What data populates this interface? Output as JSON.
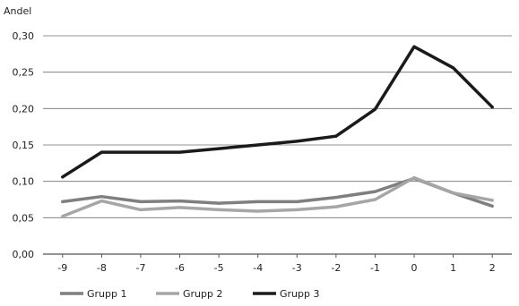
{
  "chart_data": {
    "type": "line",
    "ylabel": "Andel",
    "xlabel": "",
    "categories": [
      "-9",
      "-8",
      "-7",
      "-6",
      "-5",
      "-4",
      "-3",
      "-2",
      "-1",
      "0",
      "1",
      "2"
    ],
    "ylim": [
      0,
      0.3
    ],
    "yticks": [
      "0,00",
      "0,05",
      "0,10",
      "0,15",
      "0,20",
      "0,25",
      "0,30"
    ],
    "grid": "horizontal",
    "legend_position": "bottom",
    "series": [
      {
        "name": "Grupp 1",
        "color": "#7f7f7f",
        "values": [
          0.072,
          0.079,
          0.072,
          0.073,
          0.07,
          0.072,
          0.072,
          0.078,
          0.086,
          0.104,
          0.084,
          0.066
        ]
      },
      {
        "name": "Grupp 2",
        "color": "#a6a6a6",
        "values": [
          0.052,
          0.073,
          0.061,
          0.064,
          0.061,
          0.059,
          0.061,
          0.065,
          0.075,
          0.105,
          0.084,
          0.074
        ]
      },
      {
        "name": "Grupp 3",
        "color": "#1a1a1a",
        "values": [
          0.106,
          0.14,
          0.14,
          0.14,
          0.145,
          0.15,
          0.155,
          0.162,
          0.199,
          0.285,
          0.256,
          0.202
        ]
      }
    ]
  }
}
